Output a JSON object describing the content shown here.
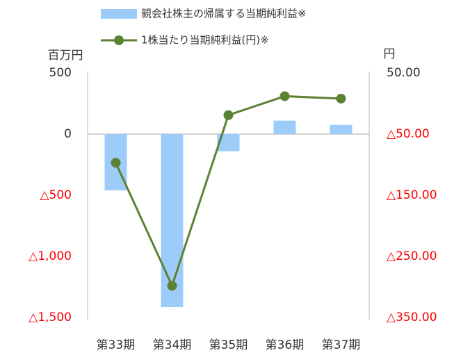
{
  "chart_data": {
    "type": "bar_line",
    "categories": [
      "第33期",
      "第34期",
      "第35期",
      "第36期",
      "第37期"
    ],
    "series": [
      {
        "name": "親会社株主の帰属する当期純利益※",
        "type": "bar",
        "color": "#9dcbfa",
        "values": [
          -460,
          -1415,
          -140,
          110,
          75
        ]
      },
      {
        "name": "1株当たり当期純利益(円)※",
        "type": "line",
        "axis": "y2",
        "color": "#5b8233",
        "values": [
          -97,
          -298,
          -19,
          12,
          8
        ]
      }
    ],
    "y_label": "百万円",
    "y2_label": "円",
    "ylim": [
      -1500,
      500
    ],
    "yticks": [
      {
        "value": 500,
        "label": "500"
      },
      0,
      {
        "value": -500,
        "label": "△500"
      },
      {
        "value": -1000,
        "label": "△1,000"
      },
      {
        "value": -1500,
        "label": "△1,500"
      }
    ],
    "y2lim": [
      -350,
      50
    ],
    "y2ticks": [
      {
        "value": 50,
        "label": "50.00"
      },
      {
        "value": -50,
        "label": "△50.00"
      },
      {
        "value": -150,
        "label": "△150.00"
      },
      {
        "value": -250,
        "label": "△250.00"
      },
      {
        "value": -350,
        "label": "△350.00"
      }
    ],
    "negative_tick_color": "#ff0000",
    "grid": false
  }
}
